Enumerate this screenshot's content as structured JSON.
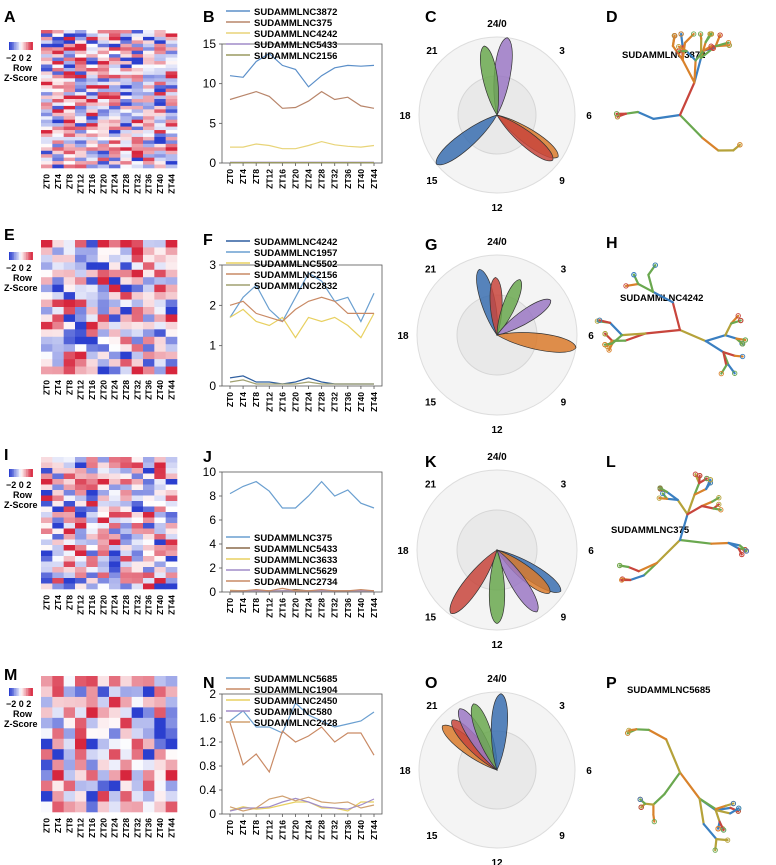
{
  "scale_labels": {
    "range": "−2 0 2",
    "row": "Row",
    "zscore": "Z-Score"
  },
  "zt_labels": [
    "ZT0",
    "ZT4",
    "ZT8",
    "ZT12",
    "ZT16",
    "ZT20",
    "ZT24",
    "ZT28",
    "ZT32",
    "ZT36",
    "ZT40",
    "ZT44"
  ],
  "clock_labels": [
    "24/0",
    "3",
    "6",
    "9",
    "12",
    "15",
    "18",
    "21"
  ],
  "colors": {
    "blue": "#3a6fb0",
    "orange": "#d97a2b",
    "red": "#c8453c",
    "green": "#6aa84f",
    "purple": "#9b78c4",
    "heat_high": "#d7263d",
    "heat_low": "#2b3fcf"
  },
  "rows": [
    {
      "heatmap": {
        "letter": "A",
        "nrows": 40,
        "ncols": 12
      },
      "line": {
        "letter": "B",
        "chart_data": {
          "type": "line",
          "x": [
            "ZT0",
            "ZT4",
            "ZT8",
            "ZT12",
            "ZT16",
            "ZT20",
            "ZT24",
            "ZT28",
            "ZT32",
            "ZT36",
            "ZT40",
            "ZT44"
          ],
          "ylim": [
            0,
            15
          ],
          "yticks": [
            0,
            5,
            10,
            15
          ],
          "series": [
            {
              "name": "SUDAMMLNC3872",
              "color": "#5b8fc9",
              "values": [
                11.0,
                10.8,
                12.8,
                13.8,
                12.3,
                11.8,
                9.6,
                11.0,
                12.0,
                12.3,
                12.2,
                12.3
              ]
            },
            {
              "name": "SUDAMMLNC375",
              "color": "#b8856a",
              "values": [
                8.0,
                8.5,
                9.0,
                8.4,
                6.9,
                7.0,
                7.8,
                9.0,
                8.0,
                8.3,
                7.2,
                6.9
              ]
            },
            {
              "name": "SUDAMMLNC4242",
              "color": "#e8d478",
              "values": [
                2.0,
                2.0,
                2.4,
                2.2,
                1.8,
                1.8,
                2.2,
                2.7,
                2.3,
                2.1,
                2.0,
                2.2
              ]
            },
            {
              "name": "SUDAMMLNC5433",
              "color": "#a08cc8",
              "values": [
                0.1,
                0.1,
                0.1,
                0.1,
                0.1,
                0.1,
                0.1,
                0.1,
                0.1,
                0.1,
                0.1,
                0.1
              ]
            },
            {
              "name": "SUDAMMLNC2156",
              "color": "#9a9a60",
              "values": [
                0.05,
                0.05,
                0.05,
                0.05,
                0.05,
                0.05,
                0.05,
                0.05,
                0.05,
                0.05,
                0.05,
                0.05
              ]
            }
          ]
        }
      },
      "radial": {
        "letter": "C",
        "petals": [
          {
            "angle_hours": 0.5,
            "length": 1.0,
            "color": "purple"
          },
          {
            "angle_hours": 23.3,
            "length": 0.9,
            "color": "green"
          },
          {
            "angle_hours": 15.4,
            "length": 1.0,
            "color": "blue"
          },
          {
            "angle_hours": 8.3,
            "length": 0.95,
            "color": "orange"
          },
          {
            "angle_hours": 8.6,
            "length": 0.92,
            "color": "red"
          }
        ]
      },
      "structure": {
        "letter": "D",
        "label": "SUDAMMLNC3872",
        "seed": 11
      }
    },
    {
      "heatmap": {
        "letter": "E",
        "nrows": 18,
        "ncols": 12
      },
      "line": {
        "letter": "F",
        "chart_data": {
          "type": "line",
          "x": [
            "ZT0",
            "ZT4",
            "ZT8",
            "ZT12",
            "ZT16",
            "ZT20",
            "ZT24",
            "ZT28",
            "ZT32",
            "ZT36",
            "ZT40",
            "ZT44"
          ],
          "ylim": [
            0,
            3
          ],
          "yticks": [
            0,
            1,
            2,
            3
          ],
          "series": [
            {
              "name": "SUDAMMLNC4242",
              "color": "#2f5fa0",
              "values": [
                0.2,
                0.25,
                0.1,
                0.1,
                0.05,
                0.1,
                0.2,
                0.1,
                0.05,
                0.05,
                0.05,
                0.05
              ]
            },
            {
              "name": "SUDAMMLNC1957",
              "color": "#6a9fd0",
              "values": [
                1.7,
                2.2,
                2.5,
                1.9,
                1.6,
                2.2,
                2.8,
                2.6,
                2.1,
                2.2,
                1.6,
                2.3
              ]
            },
            {
              "name": "SUDAMMLNC5502",
              "color": "#e8d060",
              "values": [
                1.7,
                1.9,
                1.6,
                1.5,
                1.7,
                1.2,
                1.7,
                1.6,
                1.7,
                1.5,
                1.2,
                1.8
              ]
            },
            {
              "name": "SUDAMMLNC2156",
              "color": "#c98a65",
              "values": [
                2.0,
                2.1,
                1.8,
                1.7,
                1.6,
                1.9,
                2.1,
                2.2,
                2.1,
                1.8,
                1.8,
                1.8
              ]
            },
            {
              "name": "SUDAMMLNC2832",
              "color": "#a0a070",
              "values": [
                0.1,
                0.15,
                0.05,
                0.05,
                0.05,
                0.05,
                0.1,
                0.05,
                0.05,
                0.05,
                0.05,
                0.05
              ]
            }
          ]
        }
      },
      "radial": {
        "letter": "G",
        "petals": [
          {
            "angle_hours": 23.0,
            "length": 0.85,
            "color": "blue"
          },
          {
            "angle_hours": 23.9,
            "length": 0.72,
            "color": "red"
          },
          {
            "angle_hours": 1.5,
            "length": 0.75,
            "color": "green"
          },
          {
            "angle_hours": 3.8,
            "length": 0.8,
            "color": "purple"
          },
          {
            "angle_hours": 6.6,
            "length": 1.0,
            "color": "orange"
          }
        ]
      },
      "structure": {
        "letter": "H",
        "label": "SUDAMMLNC4242",
        "seed": 23
      }
    },
    {
      "heatmap": {
        "letter": "I",
        "nrows": 24,
        "ncols": 12
      },
      "line": {
        "letter": "J",
        "chart_data": {
          "type": "line",
          "x": [
            "ZT0",
            "ZT4",
            "ZT8",
            "ZT12",
            "ZT16",
            "ZT20",
            "ZT24",
            "ZT28",
            "ZT32",
            "ZT36",
            "ZT40",
            "ZT44"
          ],
          "ylim": [
            0,
            10
          ],
          "yticks": [
            0,
            2,
            4,
            6,
            8,
            10
          ],
          "series": [
            {
              "name": "SUDAMMLNC375",
              "color": "#6a9fd0",
              "values": [
                8.2,
                8.8,
                9.2,
                8.4,
                7.0,
                7.0,
                8.0,
                9.2,
                8.0,
                8.5,
                7.4,
                7.0
              ]
            },
            {
              "name": "SUDAMMLNC5433",
              "color": "#8a6a4a",
              "values": [
                0.1,
                0.1,
                0.15,
                0.1,
                0.1,
                0.2,
                0.1,
                0.1,
                0.1,
                0.1,
                0.1,
                0.1
              ]
            },
            {
              "name": "SUDAMMLNC3633",
              "color": "#e8d060",
              "values": [
                0.15,
                0.1,
                0.1,
                0.1,
                0.1,
                0.1,
                0.1,
                0.1,
                0.1,
                0.1,
                0.1,
                0.1
              ]
            },
            {
              "name": "SUDAMMLNC5629",
              "color": "#a08cc8",
              "values": [
                0.1,
                0.1,
                0.1,
                0.1,
                0.1,
                0.1,
                0.1,
                0.1,
                0.1,
                0.1,
                0.1,
                0.1
              ]
            },
            {
              "name": "SUDAMMLNC2734",
              "color": "#c98a65",
              "values": [
                0.1,
                0.1,
                0.2,
                0.1,
                0.3,
                0.1,
                0.1,
                0.2,
                0.1,
                0.1,
                0.2,
                0.1
              ]
            }
          ]
        }
      },
      "radial": {
        "letter": "K",
        "petals": [
          {
            "angle_hours": 8.2,
            "length": 0.95,
            "color": "blue"
          },
          {
            "angle_hours": 8.6,
            "length": 0.85,
            "color": "orange"
          },
          {
            "angle_hours": 9.8,
            "length": 0.92,
            "color": "purple"
          },
          {
            "angle_hours": 12.0,
            "length": 0.92,
            "color": "green"
          },
          {
            "angle_hours": 14.4,
            "length": 0.98,
            "color": "red"
          }
        ]
      },
      "structure": {
        "letter": "L",
        "label": "SUDAMMLNC375",
        "seed": 37
      }
    },
    {
      "heatmap": {
        "letter": "M",
        "nrows": 13,
        "ncols": 12
      },
      "line": {
        "letter": "N",
        "chart_data": {
          "type": "line",
          "x": [
            "ZT0",
            "ZT4",
            "ZT8",
            "ZT12",
            "ZT16",
            "ZT20",
            "ZT24",
            "ZT28",
            "ZT32",
            "ZT36",
            "ZT40",
            "ZT44"
          ],
          "ylim": [
            0,
            2
          ],
          "yticks": [
            0,
            0.4,
            0.8,
            1.2,
            1.6,
            2
          ],
          "series": [
            {
              "name": "SUDAMMLNC5685",
              "color": "#6a9fd0",
              "values": [
                1.55,
                1.72,
                1.45,
                1.45,
                1.35,
                1.85,
                1.65,
                1.55,
                1.45,
                1.5,
                1.55,
                1.7
              ]
            },
            {
              "name": "SUDAMMLNC1904",
              "color": "#c98a65",
              "values": [
                1.52,
                0.82,
                1.0,
                0.7,
                1.38,
                1.2,
                1.3,
                1.45,
                1.2,
                1.35,
                1.35,
                0.98
              ]
            },
            {
              "name": "SUDAMMLNC2450",
              "color": "#e8d060",
              "values": [
                0.06,
                0.12,
                0.08,
                0.1,
                0.15,
                0.2,
                0.2,
                0.1,
                0.1,
                0.05,
                0.2,
                0.2
              ]
            },
            {
              "name": "SUDAMMLNC580",
              "color": "#a08cc8",
              "values": [
                0.05,
                0.1,
                0.1,
                0.12,
                0.2,
                0.26,
                0.2,
                0.12,
                0.1,
                0.08,
                0.15,
                0.25
              ]
            },
            {
              "name": "SUDAMMLNC2428",
              "color": "#d0a070",
              "values": [
                0.12,
                0.05,
                0.1,
                0.25,
                0.3,
                0.22,
                0.28,
                0.2,
                0.18,
                0.2,
                0.1,
                0.15
              ]
            }
          ]
        }
      },
      "radial": {
        "letter": "O",
        "petals": [
          {
            "angle_hours": 20.6,
            "length": 0.9,
            "color": "orange"
          },
          {
            "angle_hours": 21.2,
            "length": 0.86,
            "color": "red"
          },
          {
            "angle_hours": 21.9,
            "length": 0.92,
            "color": "purple"
          },
          {
            "angle_hours": 22.7,
            "length": 0.9,
            "color": "green"
          },
          {
            "angle_hours": 0.2,
            "length": 0.98,
            "color": "blue"
          }
        ]
      },
      "structure": {
        "letter": "P",
        "label": "SUDAMMLNC5685",
        "seed": 53
      }
    }
  ]
}
